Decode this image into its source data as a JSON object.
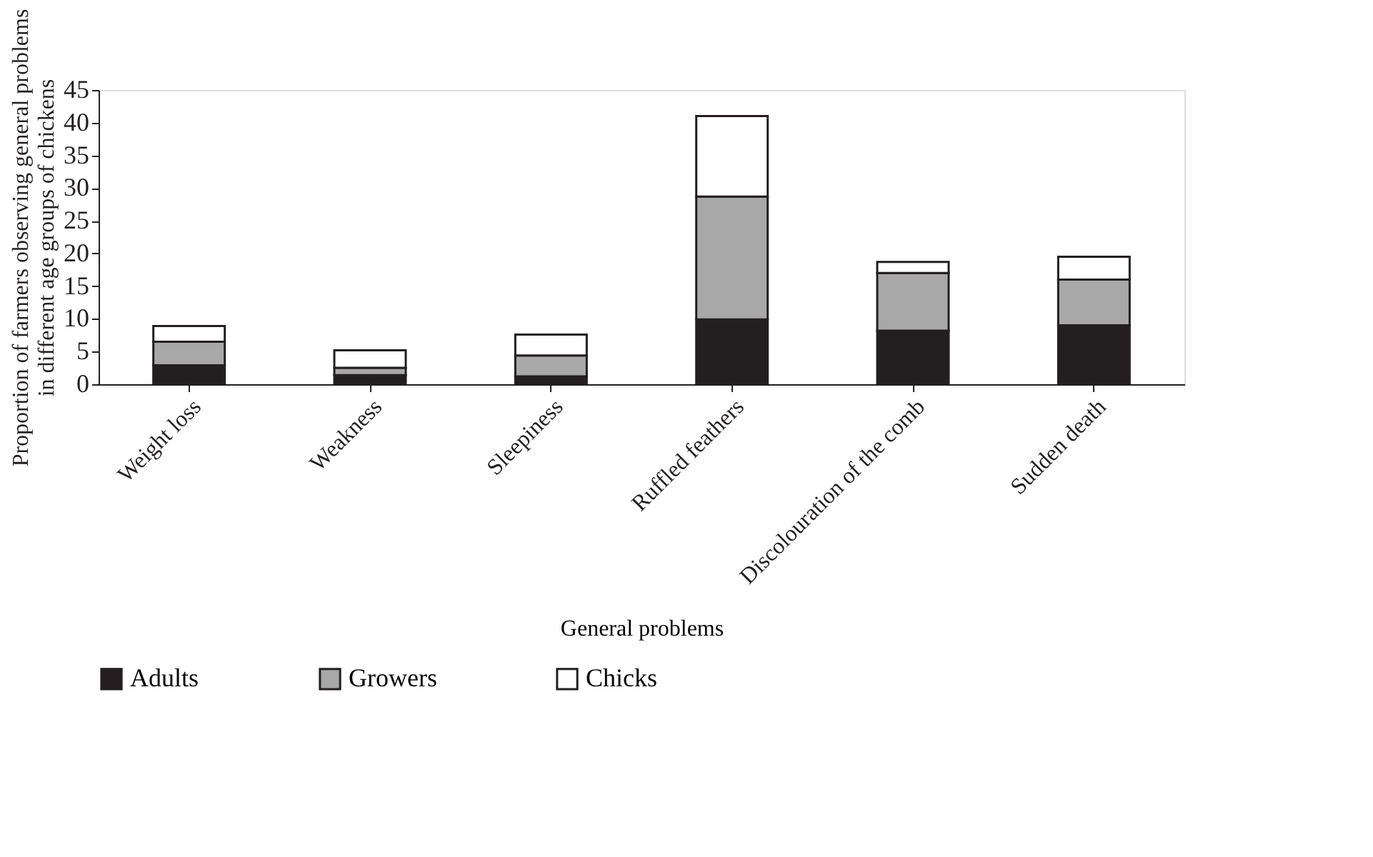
{
  "chart_data": {
    "type": "bar",
    "stacked": true,
    "categories": [
      "Weight loss",
      "Weakness",
      "Sleepiness",
      "Ruffled feathers",
      "Discolouration of the comb",
      "Sudden death"
    ],
    "series": [
      {
        "name": "Adults",
        "color": "#231f20",
        "values": [
          2.9,
          1.4,
          1.2,
          9.9,
          8.2,
          9.0
        ]
      },
      {
        "name": "Growers",
        "color": "#a8a8a8",
        "values": [
          3.6,
          1.1,
          3.2,
          18.8,
          8.8,
          7.0
        ]
      },
      {
        "name": "Chicks",
        "color": "#ffffff",
        "values": [
          2.4,
          2.7,
          3.2,
          12.3,
          1.7,
          3.5
        ]
      }
    ],
    "xlabel": "General problems",
    "ylabel": "Proportion of farmers observing general problems in different age groups of chickens",
    "ylim": [
      0,
      45
    ],
    "yticks": [
      0,
      5,
      10,
      15,
      20,
      25,
      30,
      35,
      40,
      45
    ],
    "grid": false,
    "legend": "bottom"
  }
}
